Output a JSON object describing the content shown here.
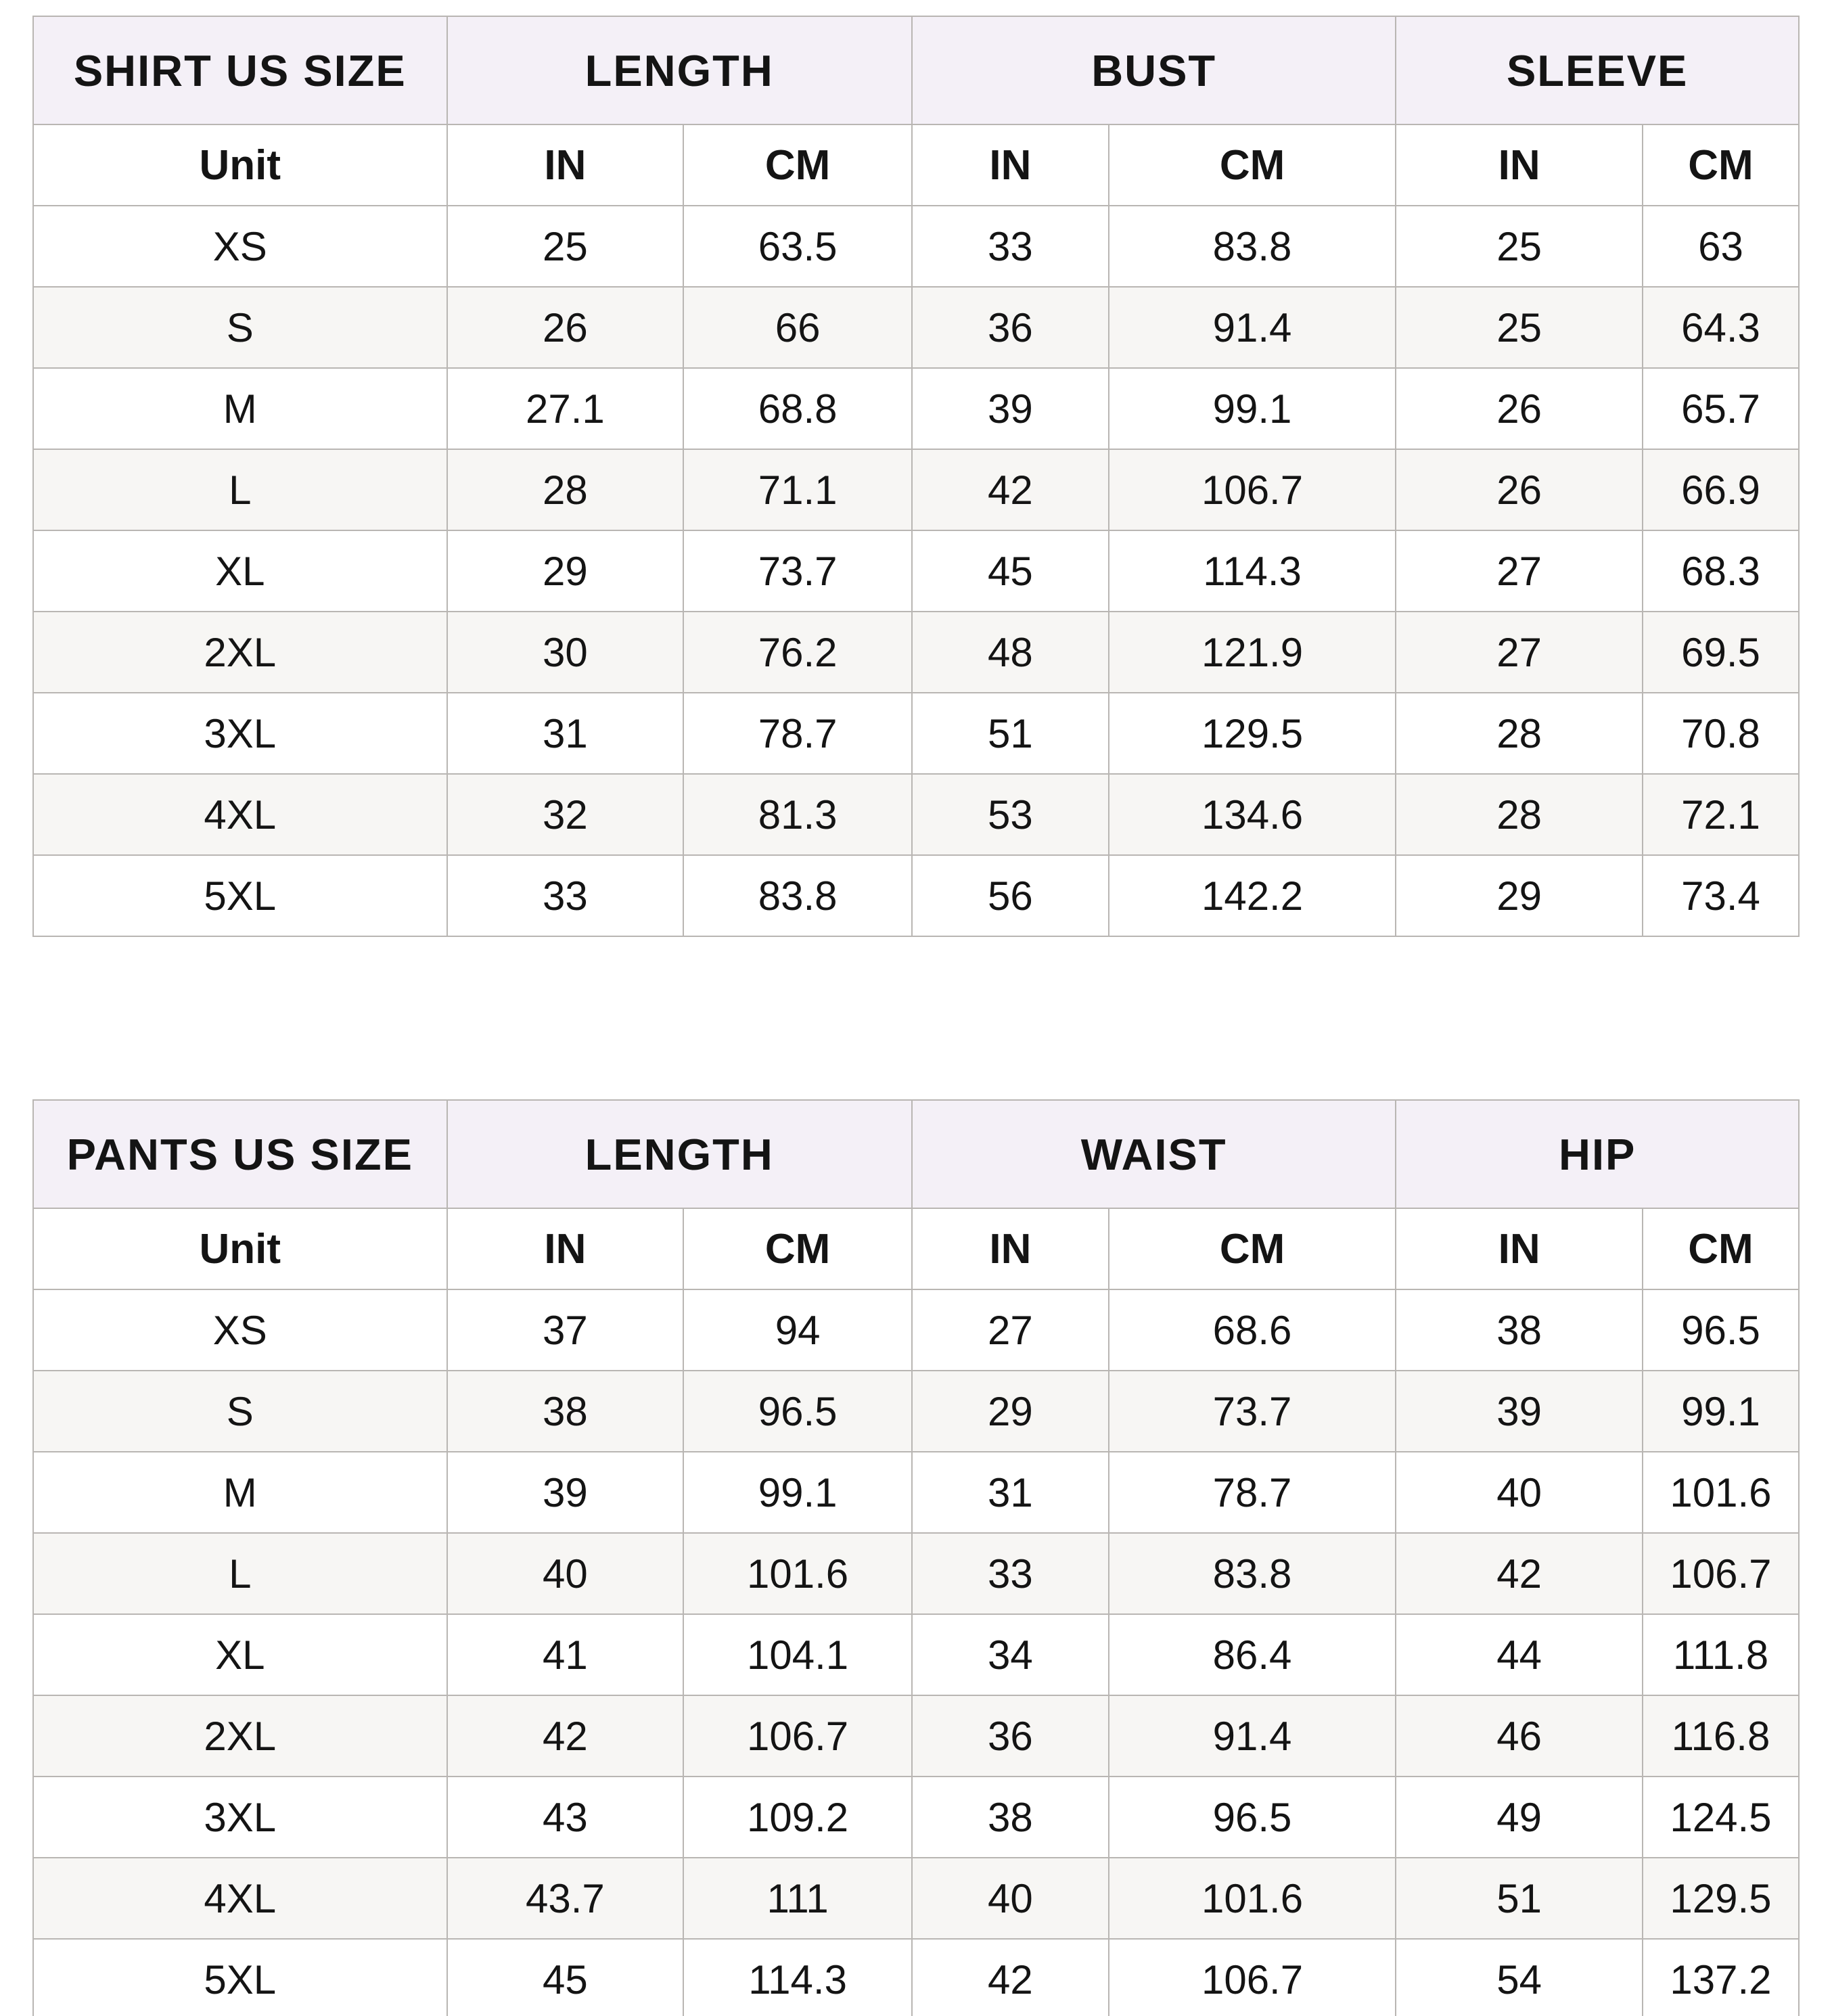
{
  "style": {
    "header_bg": "#f4f0f7",
    "row_bg": "#ffffff",
    "row_alt_bg": "#f7f6f4",
    "border_color": "#b9b6b3",
    "text_color": "#141414"
  },
  "layout": {
    "col_widths": [
      "23.43%",
      "13.40%",
      "12.94%",
      "11.14%",
      "16.27%",
      "13.97%",
      "8.85%"
    ]
  },
  "tables": [
    {
      "name": "shirt-size-table",
      "corner_label": "SHIRT US SIZE",
      "group_headers": [
        "LENGTH",
        "BUST",
        "SLEEVE"
      ],
      "unit_label": "Unit",
      "unit_headers": [
        "IN",
        "CM",
        "IN",
        "CM",
        "IN",
        "CM"
      ],
      "rows": [
        {
          "size": "XS",
          "values": [
            "25",
            "63.5",
            "33",
            "83.8",
            "25",
            "63"
          ]
        },
        {
          "size": "S",
          "values": [
            "26",
            "66",
            "36",
            "91.4",
            "25",
            "64.3"
          ]
        },
        {
          "size": "M",
          "values": [
            "27.1",
            "68.8",
            "39",
            "99.1",
            "26",
            "65.7"
          ]
        },
        {
          "size": "L",
          "values": [
            "28",
            "71.1",
            "42",
            "106.7",
            "26",
            "66.9"
          ]
        },
        {
          "size": "XL",
          "values": [
            "29",
            "73.7",
            "45",
            "114.3",
            "27",
            "68.3"
          ]
        },
        {
          "size": "2XL",
          "values": [
            "30",
            "76.2",
            "48",
            "121.9",
            "27",
            "69.5"
          ]
        },
        {
          "size": "3XL",
          "values": [
            "31",
            "78.7",
            "51",
            "129.5",
            "28",
            "70.8"
          ]
        },
        {
          "size": "4XL",
          "values": [
            "32",
            "81.3",
            "53",
            "134.6",
            "28",
            "72.1"
          ]
        },
        {
          "size": "5XL",
          "values": [
            "33",
            "83.8",
            "56",
            "142.2",
            "29",
            "73.4"
          ]
        }
      ]
    },
    {
      "name": "pants-size-table",
      "corner_label": "PANTS US SIZE",
      "group_headers": [
        "LENGTH",
        "WAIST",
        "HIP"
      ],
      "unit_label": "Unit",
      "unit_headers": [
        "IN",
        "CM",
        "IN",
        "CM",
        "IN",
        "CM"
      ],
      "rows": [
        {
          "size": "XS",
          "values": [
            "37",
            "94",
            "27",
            "68.6",
            "38",
            "96.5"
          ]
        },
        {
          "size": "S",
          "values": [
            "38",
            "96.5",
            "29",
            "73.7",
            "39",
            "99.1"
          ]
        },
        {
          "size": "M",
          "values": [
            "39",
            "99.1",
            "31",
            "78.7",
            "40",
            "101.6"
          ]
        },
        {
          "size": "L",
          "values": [
            "40",
            "101.6",
            "33",
            "83.8",
            "42",
            "106.7"
          ]
        },
        {
          "size": "XL",
          "values": [
            "41",
            "104.1",
            "34",
            "86.4",
            "44",
            "111.8"
          ]
        },
        {
          "size": "2XL",
          "values": [
            "42",
            "106.7",
            "36",
            "91.4",
            "46",
            "116.8"
          ]
        },
        {
          "size": "3XL",
          "values": [
            "43",
            "109.2",
            "38",
            "96.5",
            "49",
            "124.5"
          ]
        },
        {
          "size": "4XL",
          "values": [
            "43.7",
            "111",
            "40",
            "101.6",
            "51",
            "129.5"
          ]
        },
        {
          "size": "5XL",
          "values": [
            "45",
            "114.3",
            "42",
            "106.7",
            "54",
            "137.2"
          ]
        }
      ]
    }
  ],
  "chart_data": [
    {
      "type": "table",
      "title": "SHIRT US SIZE",
      "columns": [
        "SHIRT US SIZE",
        "LENGTH IN",
        "LENGTH CM",
        "BUST IN",
        "BUST CM",
        "SLEEVE IN",
        "SLEEVE CM"
      ],
      "rows": [
        [
          "XS",
          25,
          63.5,
          33,
          83.8,
          25,
          63
        ],
        [
          "S",
          26,
          66,
          36,
          91.4,
          25,
          64.3
        ],
        [
          "M",
          27.1,
          68.8,
          39,
          99.1,
          26,
          65.7
        ],
        [
          "L",
          28,
          71.1,
          42,
          106.7,
          26,
          66.9
        ],
        [
          "XL",
          29,
          73.7,
          45,
          114.3,
          27,
          68.3
        ],
        [
          "2XL",
          30,
          76.2,
          48,
          121.9,
          27,
          69.5
        ],
        [
          "3XL",
          31,
          78.7,
          51,
          129.5,
          28,
          70.8
        ],
        [
          "4XL",
          32,
          81.3,
          53,
          134.6,
          28,
          72.1
        ],
        [
          "5XL",
          33,
          83.8,
          56,
          142.2,
          29,
          73.4
        ]
      ]
    },
    {
      "type": "table",
      "title": "PANTS US SIZE",
      "columns": [
        "PANTS US SIZE",
        "LENGTH IN",
        "LENGTH CM",
        "WAIST IN",
        "WAIST CM",
        "HIP IN",
        "HIP CM"
      ],
      "rows": [
        [
          "XS",
          37,
          94,
          27,
          68.6,
          38,
          96.5
        ],
        [
          "S",
          38,
          96.5,
          29,
          73.7,
          39,
          99.1
        ],
        [
          "M",
          39,
          99.1,
          31,
          78.7,
          40,
          101.6
        ],
        [
          "L",
          40,
          101.6,
          33,
          83.8,
          42,
          106.7
        ],
        [
          "XL",
          41,
          104.1,
          34,
          86.4,
          44,
          111.8
        ],
        [
          "2XL",
          42,
          106.7,
          36,
          91.4,
          46,
          116.8
        ],
        [
          "3XL",
          43,
          109.2,
          38,
          96.5,
          49,
          124.5
        ],
        [
          "4XL",
          43.7,
          111,
          40,
          101.6,
          51,
          129.5
        ],
        [
          "5XL",
          45,
          114.3,
          42,
          106.7,
          54,
          137.2
        ]
      ]
    }
  ]
}
